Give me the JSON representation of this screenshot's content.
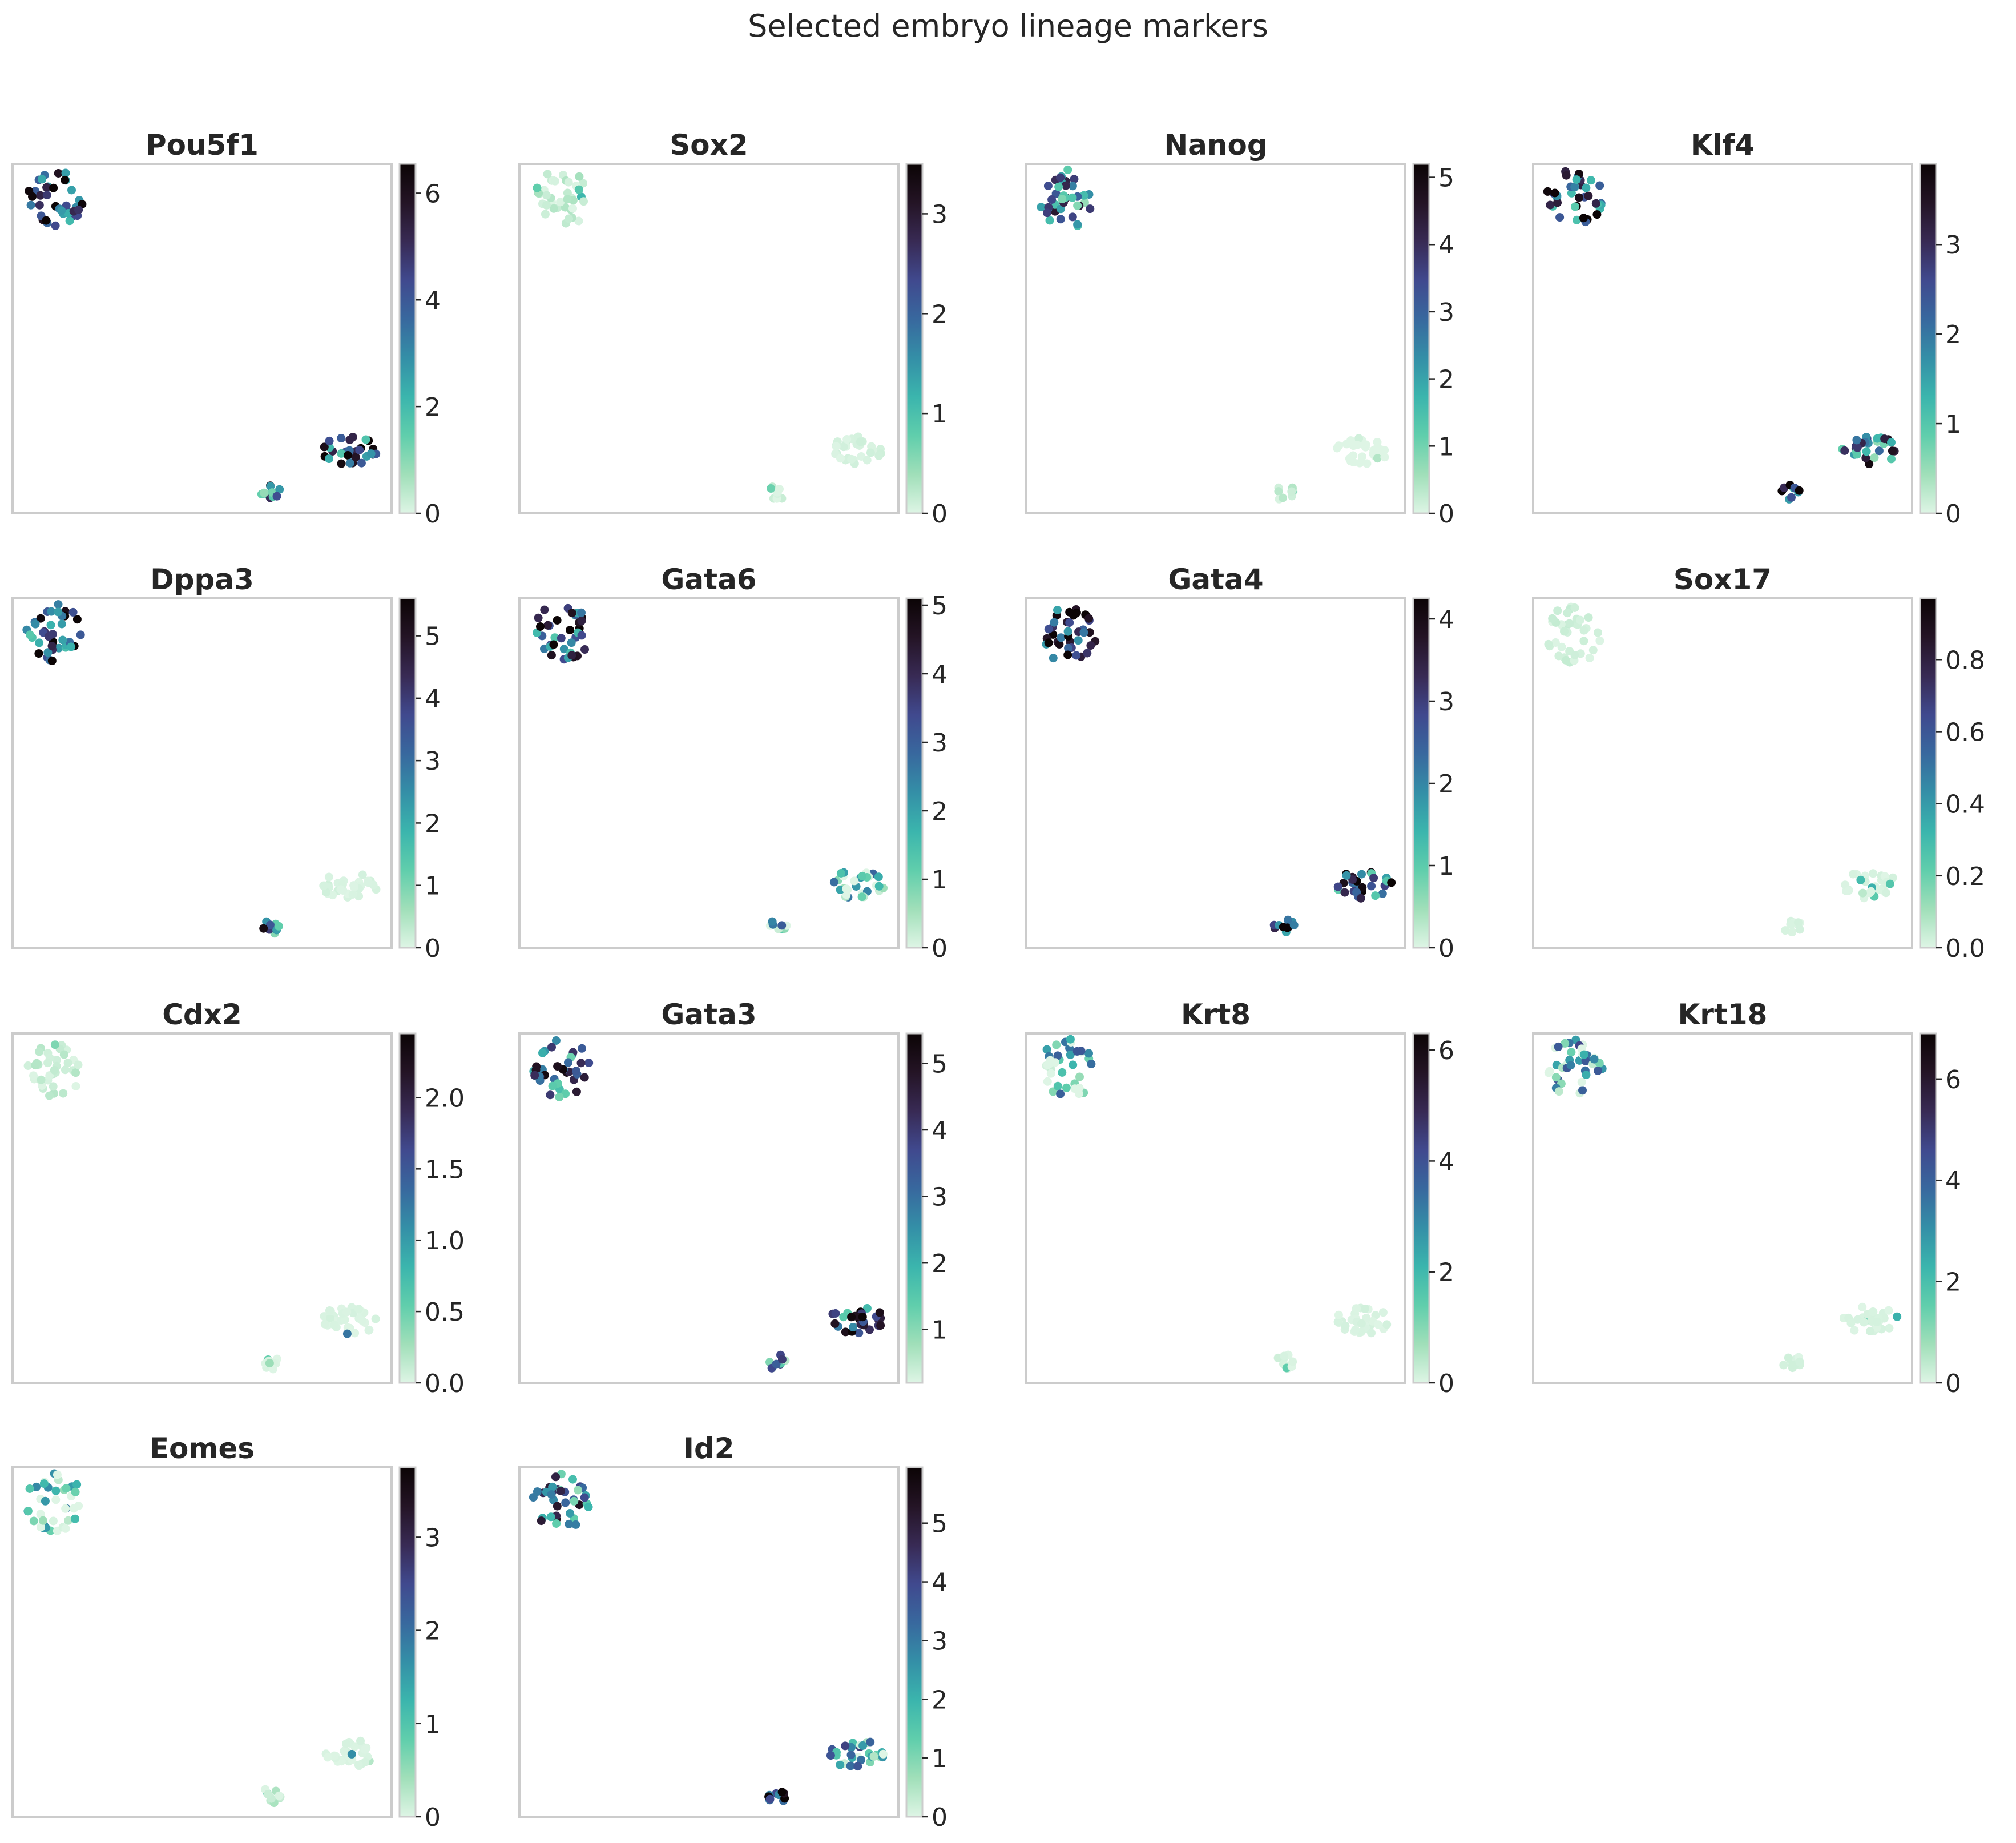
{
  "title": "Selected embryo lineage markers",
  "colormap": {
    "name": "mako_r",
    "stops": [
      "#def5e5",
      "#a0dfb9",
      "#60ceac",
      "#3bb5ad",
      "#348fa7",
      "#38689e",
      "#40498e",
      "#382a54",
      "#241425",
      "#0b0405"
    ]
  },
  "chart_data": [
    {
      "type": "scatter",
      "title": "Pou5f1",
      "colorbar_range": [
        0,
        6.55
      ],
      "colorbar_ticks": [
        "0",
        "2",
        "4",
        "6"
      ],
      "colorbar_tick_values": [
        0,
        2,
        4,
        6
      ],
      "cluster_levels": [
        0.7,
        0.55,
        0.65
      ]
    },
    {
      "type": "scatter",
      "title": "Sox2",
      "colorbar_range": [
        0,
        3.5
      ],
      "colorbar_ticks": [
        "0",
        "1",
        "2",
        "3"
      ],
      "colorbar_tick_values": [
        0,
        1,
        2,
        3
      ],
      "cluster_levels": [
        0.1,
        0.05,
        0.03
      ]
    },
    {
      "type": "scatter",
      "title": "Nanog",
      "colorbar_range": [
        0,
        5.2
      ],
      "colorbar_ticks": [
        "0",
        "1",
        "2",
        "3",
        "4",
        "5"
      ],
      "colorbar_tick_values": [
        0,
        1,
        2,
        3,
        4,
        5
      ],
      "cluster_levels": [
        0.55,
        0.08,
        0.0
      ]
    },
    {
      "type": "scatter",
      "title": "Klf4",
      "colorbar_range": [
        0,
        3.9
      ],
      "colorbar_ticks": [
        "0",
        "1",
        "2",
        "3"
      ],
      "colorbar_tick_values": [
        0,
        1,
        2,
        3
      ],
      "cluster_levels": [
        0.65,
        0.75,
        0.55
      ]
    },
    {
      "type": "scatter",
      "title": "Dppa3",
      "colorbar_range": [
        0,
        5.6
      ],
      "colorbar_ticks": [
        "0",
        "1",
        "2",
        "3",
        "4",
        "5"
      ],
      "colorbar_tick_values": [
        0,
        1,
        2,
        3,
        4,
        5
      ],
      "cluster_levels": [
        0.65,
        0.55,
        0.03
      ]
    },
    {
      "type": "scatter",
      "title": "Gata6",
      "colorbar_range": [
        0,
        5.1
      ],
      "colorbar_ticks": [
        "0",
        "1",
        "2",
        "3",
        "4",
        "5"
      ],
      "colorbar_tick_values": [
        0,
        1,
        2,
        3,
        4,
        5
      ],
      "cluster_levels": [
        0.65,
        0.2,
        0.15
      ]
    },
    {
      "type": "scatter",
      "title": "Gata4",
      "colorbar_range": [
        0,
        4.25
      ],
      "colorbar_ticks": [
        "0",
        "1",
        "2",
        "3",
        "4"
      ],
      "colorbar_tick_values": [
        0,
        1,
        2,
        3,
        4
      ],
      "cluster_levels": [
        0.8,
        0.8,
        0.65
      ]
    },
    {
      "type": "scatter",
      "title": "Sox17",
      "colorbar_range": [
        0,
        0.97
      ],
      "colorbar_ticks": [
        "0.0",
        "0.2",
        "0.4",
        "0.6",
        "0.8"
      ],
      "colorbar_tick_values": [
        0,
        0.2,
        0.4,
        0.6,
        0.8
      ],
      "cluster_levels": [
        0.05,
        0.02,
        0.02
      ]
    },
    {
      "type": "scatter",
      "title": "Cdx2",
      "colorbar_range": [
        0,
        2.45
      ],
      "colorbar_ticks": [
        "0.0",
        "0.5",
        "1.0",
        "1.5",
        "2.0"
      ],
      "colorbar_tick_values": [
        0,
        0.5,
        1.0,
        1.5,
        2.0
      ],
      "cluster_levels": [
        0.08,
        0.02,
        0.02
      ]
    },
    {
      "type": "scatter",
      "title": "Gata3",
      "colorbar_range": [
        0.2,
        5.45
      ],
      "colorbar_ticks": [
        "1",
        "2",
        "3",
        "4",
        "5"
      ],
      "colorbar_tick_values": [
        1,
        2,
        3,
        4,
        5
      ],
      "cluster_levels": [
        0.55,
        0.35,
        0.65
      ]
    },
    {
      "type": "scatter",
      "title": "Krt8",
      "colorbar_range": [
        0,
        6.3
      ],
      "colorbar_ticks": [
        "0",
        "2",
        "4",
        "6"
      ],
      "colorbar_tick_values": [
        0,
        2,
        4,
        6
      ],
      "cluster_levels": [
        0.2,
        0.03,
        0.02
      ]
    },
    {
      "type": "scatter",
      "title": "Krt18",
      "colorbar_range": [
        0,
        6.9
      ],
      "colorbar_ticks": [
        "0",
        "2",
        "4",
        "6"
      ],
      "colorbar_tick_values": [
        0,
        2,
        4,
        6
      ],
      "cluster_levels": [
        0.25,
        0.03,
        0.02
      ]
    },
    {
      "type": "scatter",
      "title": "Eomes",
      "colorbar_range": [
        0,
        3.75
      ],
      "colorbar_ticks": [
        "0",
        "1",
        "2",
        "3"
      ],
      "colorbar_tick_values": [
        0,
        1,
        2,
        3
      ],
      "cluster_levels": [
        0.15,
        0.1,
        0.02
      ]
    },
    {
      "type": "scatter",
      "title": "Id2",
      "colorbar_range": [
        0,
        5.95
      ],
      "colorbar_ticks": [
        "0",
        "1",
        "2",
        "3",
        "4",
        "5"
      ],
      "colorbar_tick_values": [
        0,
        1,
        2,
        3,
        4,
        5
      ],
      "cluster_levels": [
        0.55,
        0.7,
        0.35
      ]
    }
  ]
}
